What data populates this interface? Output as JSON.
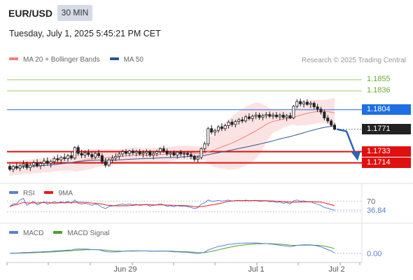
{
  "header": {
    "symbol": "EUR/USD",
    "timeframe": "30 MIN",
    "datetime": "Tuesday, July 1, 2025 5:45:21 PM CET"
  },
  "legends": {
    "main": [
      {
        "label": "MA 20 + Bollinger Bands",
        "color": "#f08080"
      },
      {
        "label": "MA 50",
        "color": "#2c5591"
      }
    ],
    "rsi": [
      {
        "label": "RSI",
        "color": "#5b7fd4"
      },
      {
        "label": "9MA",
        "color": "#e8191f"
      }
    ],
    "macd": [
      {
        "label": "MACD",
        "color": "#5b7fd4"
      },
      {
        "label": "MACD Signal",
        "color": "#4aa02c"
      }
    ]
  },
  "copyright": "Research © 2025 Trading Central",
  "price_levels": [
    {
      "value": "1.1855",
      "type": "resistance-light",
      "color": "#6aaa3a"
    },
    {
      "value": "1.1836",
      "type": "resistance-light",
      "color": "#6aaa3a"
    },
    {
      "value": "1.1804",
      "type": "pivot",
      "color": "#1e6ee6"
    },
    {
      "value": "1.1771",
      "type": "current",
      "color": "#222222"
    },
    {
      "value": "1.1733",
      "type": "support",
      "color": "#e01010"
    },
    {
      "value": "1.1714",
      "type": "support",
      "color": "#e01010"
    }
  ],
  "rsi_levels": [
    {
      "value": "70",
      "color": "#666666"
    },
    {
      "value": "36.84",
      "color": "#5b7fd4"
    }
  ],
  "macd_levels": [
    {
      "value": "0.00",
      "color": "#5b7fd4"
    }
  ],
  "x_axis": {
    "labels": [
      "Jun 29",
      "Jul 1",
      "Jul 2"
    ]
  },
  "chart_data": {
    "type": "candlestick",
    "price_range": [
      1.1685,
      1.1875
    ],
    "candles": [
      [
        1.1708,
        1.1712,
        1.17,
        1.1703
      ],
      [
        1.1703,
        1.171,
        1.1698,
        1.1708
      ],
      [
        1.1708,
        1.1714,
        1.1702,
        1.1705
      ],
      [
        1.1705,
        1.1712,
        1.17,
        1.1709
      ],
      [
        1.1709,
        1.1718,
        1.1704,
        1.1712
      ],
      [
        1.1712,
        1.1716,
        1.1702,
        1.1706
      ],
      [
        1.1706,
        1.1713,
        1.17,
        1.171
      ],
      [
        1.171,
        1.1718,
        1.1706,
        1.1714
      ],
      [
        1.1714,
        1.172,
        1.1706,
        1.1709
      ],
      [
        1.1709,
        1.1716,
        1.1703,
        1.1713
      ],
      [
        1.1713,
        1.1722,
        1.1708,
        1.1717
      ],
      [
        1.1717,
        1.1723,
        1.171,
        1.1713
      ],
      [
        1.1713,
        1.1719,
        1.1706,
        1.1716
      ],
      [
        1.1716,
        1.1725,
        1.1712,
        1.1721
      ],
      [
        1.1721,
        1.1728,
        1.1715,
        1.1719
      ],
      [
        1.1719,
        1.1726,
        1.1713,
        1.1723
      ],
      [
        1.1723,
        1.173,
        1.1717,
        1.1721
      ],
      [
        1.1721,
        1.1729,
        1.1716,
        1.1726
      ],
      [
        1.1726,
        1.1732,
        1.1719,
        1.1722
      ],
      [
        1.1722,
        1.1742,
        1.1719,
        1.174
      ],
      [
        1.174,
        1.1744,
        1.1726,
        1.173
      ],
      [
        1.173,
        1.1736,
        1.1722,
        1.1727
      ],
      [
        1.1727,
        1.1735,
        1.1722,
        1.1731
      ],
      [
        1.1731,
        1.1737,
        1.1724,
        1.1728
      ],
      [
        1.1728,
        1.1733,
        1.172,
        1.1724
      ],
      [
        1.1724,
        1.1733,
        1.172,
        1.173
      ],
      [
        1.173,
        1.1736,
        1.1723,
        1.1726
      ],
      [
        1.1726,
        1.173,
        1.1712,
        1.1716
      ],
      [
        1.1716,
        1.1722,
        1.1706,
        1.171
      ],
      [
        1.171,
        1.1722,
        1.1707,
        1.1719
      ],
      [
        1.1719,
        1.1727,
        1.1714,
        1.1722
      ],
      [
        1.1722,
        1.173,
        1.1717,
        1.1725
      ],
      [
        1.1725,
        1.1733,
        1.172,
        1.1729
      ],
      [
        1.1729,
        1.1736,
        1.1724,
        1.1733
      ],
      [
        1.1733,
        1.1737,
        1.1726,
        1.173
      ],
      [
        1.173,
        1.1736,
        1.1725,
        1.1734
      ],
      [
        1.1734,
        1.1738,
        1.1727,
        1.1731
      ],
      [
        1.1731,
        1.1736,
        1.1725,
        1.1733
      ],
      [
        1.1733,
        1.1737,
        1.1726,
        1.1729
      ],
      [
        1.1729,
        1.1735,
        1.1723,
        1.1731
      ],
      [
        1.1731,
        1.1737,
        1.1725,
        1.1733
      ],
      [
        1.1733,
        1.1736,
        1.1724,
        1.1727
      ],
      [
        1.1727,
        1.1733,
        1.172,
        1.173
      ],
      [
        1.173,
        1.1736,
        1.1725,
        1.1733
      ],
      [
        1.1733,
        1.174,
        1.1728,
        1.1738
      ],
      [
        1.1738,
        1.1743,
        1.1731,
        1.1734
      ],
      [
        1.1734,
        1.1738,
        1.1726,
        1.1729
      ],
      [
        1.1729,
        1.1734,
        1.1723,
        1.1731
      ],
      [
        1.1731,
        1.1735,
        1.1725,
        1.1727
      ],
      [
        1.1727,
        1.1734,
        1.1721,
        1.1732
      ],
      [
        1.1732,
        1.1736,
        1.1725,
        1.1729
      ],
      [
        1.1729,
        1.1733,
        1.1722,
        1.173
      ],
      [
        1.173,
        1.1734,
        1.1724,
        1.1728
      ],
      [
        1.1728,
        1.1732,
        1.172,
        1.1725
      ],
      [
        1.1725,
        1.1728,
        1.1716,
        1.172
      ],
      [
        1.172,
        1.1726,
        1.1715,
        1.1723
      ],
      [
        1.1723,
        1.174,
        1.172,
        1.1738
      ],
      [
        1.1738,
        1.175,
        1.1734,
        1.1746
      ],
      [
        1.1746,
        1.1775,
        1.1742,
        1.1772
      ],
      [
        1.1772,
        1.1778,
        1.1762,
        1.1766
      ],
      [
        1.1766,
        1.1772,
        1.176,
        1.1769
      ],
      [
        1.1769,
        1.1778,
        1.1765,
        1.1775
      ],
      [
        1.1775,
        1.1781,
        1.1768,
        1.1772
      ],
      [
        1.1772,
        1.178,
        1.1768,
        1.1777
      ],
      [
        1.1777,
        1.1786,
        1.1772,
        1.1783
      ],
      [
        1.1783,
        1.1788,
        1.1775,
        1.1779
      ],
      [
        1.1779,
        1.1787,
        1.1774,
        1.1784
      ],
      [
        1.1784,
        1.179,
        1.1779,
        1.1787
      ],
      [
        1.1787,
        1.1792,
        1.1781,
        1.1785
      ],
      [
        1.1785,
        1.1795,
        1.1782,
        1.1792
      ],
      [
        1.1792,
        1.1798,
        1.1786,
        1.1789
      ],
      [
        1.1789,
        1.1796,
        1.1784,
        1.1793
      ],
      [
        1.1793,
        1.18,
        1.1788,
        1.1795
      ],
      [
        1.1795,
        1.1799,
        1.1787,
        1.1791
      ],
      [
        1.1791,
        1.1797,
        1.1786,
        1.1794
      ],
      [
        1.1794,
        1.18,
        1.1789,
        1.1796
      ],
      [
        1.1796,
        1.1801,
        1.179,
        1.1793
      ],
      [
        1.1793,
        1.1799,
        1.1788,
        1.1795
      ],
      [
        1.1795,
        1.18,
        1.1789,
        1.1792
      ],
      [
        1.1792,
        1.1798,
        1.1787,
        1.1795
      ],
      [
        1.1795,
        1.18,
        1.1788,
        1.1791
      ],
      [
        1.1791,
        1.1797,
        1.1785,
        1.1794
      ],
      [
        1.1794,
        1.1799,
        1.1788,
        1.179
      ],
      [
        1.179,
        1.1812,
        1.1788,
        1.181
      ],
      [
        1.181,
        1.1822,
        1.1806,
        1.1818
      ],
      [
        1.1818,
        1.1823,
        1.181,
        1.1814
      ],
      [
        1.1814,
        1.182,
        1.1808,
        1.1817
      ],
      [
        1.1817,
        1.1822,
        1.1811,
        1.1813
      ],
      [
        1.1813,
        1.1819,
        1.1807,
        1.1815
      ],
      [
        1.1815,
        1.1818,
        1.1805,
        1.1809
      ],
      [
        1.1809,
        1.1814,
        1.18,
        1.1805
      ],
      [
        1.1805,
        1.1809,
        1.1796,
        1.18
      ],
      [
        1.18,
        1.1804,
        1.1786,
        1.179
      ],
      [
        1.179,
        1.1795,
        1.1781,
        1.1785
      ],
      [
        1.1785,
        1.1788,
        1.1775,
        1.1778
      ],
      [
        1.1778,
        1.1782,
        1.1769,
        1.1771
      ]
    ]
  }
}
